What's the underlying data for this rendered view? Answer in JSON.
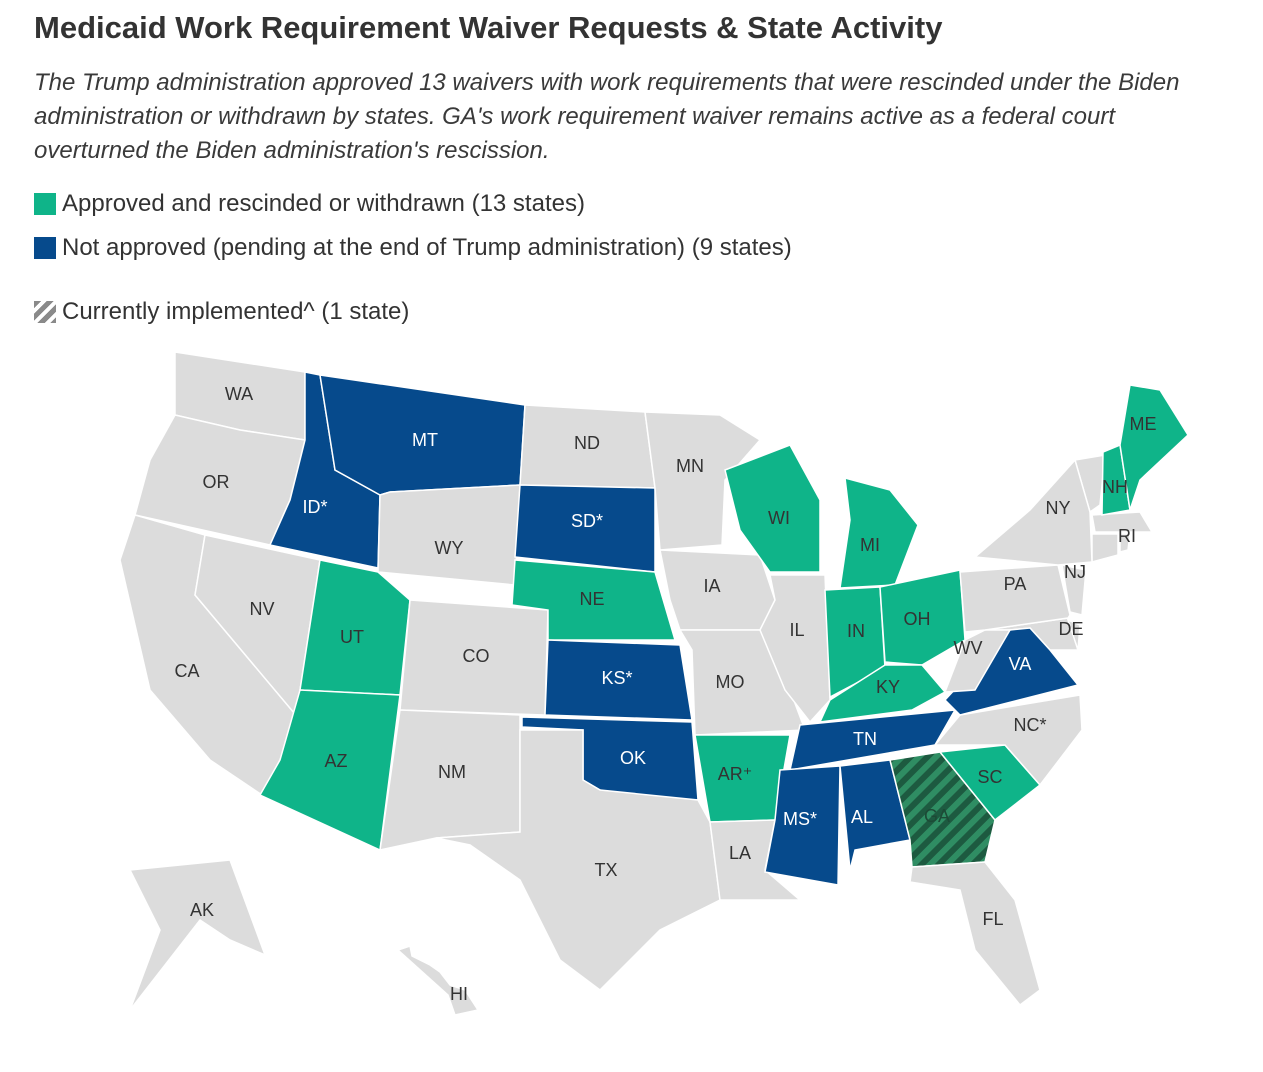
{
  "title": "Medicaid Work Requirement Waiver Requests & State Activity",
  "subtitle": "The Trump administration approved 13 waivers with work requirements that were rescinded under the Biden administration or withdrawn by states. GA's work requirement waiver remains active as a federal court overturned the Biden administration's rescission.",
  "legend": [
    {
      "label": "Approved and rescinded or withdrawn (13 states)",
      "color": "#0fb489"
    },
    {
      "label": "Not approved (pending at the end of Trump administration) (9 states)",
      "color": "#064a8c"
    },
    {
      "label": "Currently implemented^ (1 state)",
      "pattern": "hatched",
      "color": "#8a8a8a"
    }
  ],
  "states": [
    {
      "abbr": "WA",
      "color": "#dcdcdc"
    },
    {
      "abbr": "OR",
      "color": "#dcdcdc"
    },
    {
      "abbr": "CA",
      "color": "#dcdcdc"
    },
    {
      "abbr": "NV",
      "color": "#dcdcdc"
    },
    {
      "abbr": "ID*",
      "color": "#064a8c"
    },
    {
      "abbr": "MT",
      "color": "#064a8c"
    },
    {
      "abbr": "WY",
      "color": "#dcdcdc"
    },
    {
      "abbr": "UT",
      "color": "#0fb489"
    },
    {
      "abbr": "CO",
      "color": "#dcdcdc"
    },
    {
      "abbr": "AZ",
      "color": "#0fb489"
    },
    {
      "abbr": "NM",
      "color": "#dcdcdc"
    },
    {
      "abbr": "ND",
      "color": "#dcdcdc"
    },
    {
      "abbr": "SD*",
      "color": "#064a8c"
    },
    {
      "abbr": "NE",
      "color": "#0fb489"
    },
    {
      "abbr": "KS*",
      "color": "#064a8c"
    },
    {
      "abbr": "OK",
      "color": "#064a8c"
    },
    {
      "abbr": "TX",
      "color": "#dcdcdc"
    },
    {
      "abbr": "MN",
      "color": "#dcdcdc"
    },
    {
      "abbr": "IA",
      "color": "#dcdcdc"
    },
    {
      "abbr": "MO",
      "color": "#dcdcdc"
    },
    {
      "abbr": "AR⁺",
      "color": "#0fb489"
    },
    {
      "abbr": "LA",
      "color": "#dcdcdc"
    },
    {
      "abbr": "WI",
      "color": "#0fb489"
    },
    {
      "abbr": "IL",
      "color": "#dcdcdc"
    },
    {
      "abbr": "MI",
      "color": "#0fb489"
    },
    {
      "abbr": "IN",
      "color": "#0fb489"
    },
    {
      "abbr": "OH",
      "color": "#0fb489"
    },
    {
      "abbr": "KY",
      "color": "#0fb489"
    },
    {
      "abbr": "TN",
      "color": "#064a8c"
    },
    {
      "abbr": "MS*",
      "color": "#064a8c"
    },
    {
      "abbr": "AL",
      "color": "#064a8c"
    },
    {
      "abbr": "GA",
      "color": "#2f8d63",
      "hatched": true
    },
    {
      "abbr": "FL",
      "color": "#dcdcdc"
    },
    {
      "abbr": "SC",
      "color": "#0fb489"
    },
    {
      "abbr": "NC*",
      "color": "#dcdcdc"
    },
    {
      "abbr": "VA",
      "color": "#064a8c"
    },
    {
      "abbr": "WV",
      "color": "#dcdcdc"
    },
    {
      "abbr": "PA",
      "color": "#dcdcdc"
    },
    {
      "abbr": "NY",
      "color": "#dcdcdc"
    },
    {
      "abbr": "NJ",
      "color": "#dcdcdc"
    },
    {
      "abbr": "DE",
      "color": "#dcdcdc"
    },
    {
      "abbr": "RI",
      "color": "#dcdcdc"
    },
    {
      "abbr": "NH",
      "color": "#0fb489"
    },
    {
      "abbr": "ME",
      "color": "#0fb489"
    },
    {
      "abbr": "AK",
      "color": "#dcdcdc"
    },
    {
      "abbr": "HI",
      "color": "#dcdcdc"
    }
  ]
}
